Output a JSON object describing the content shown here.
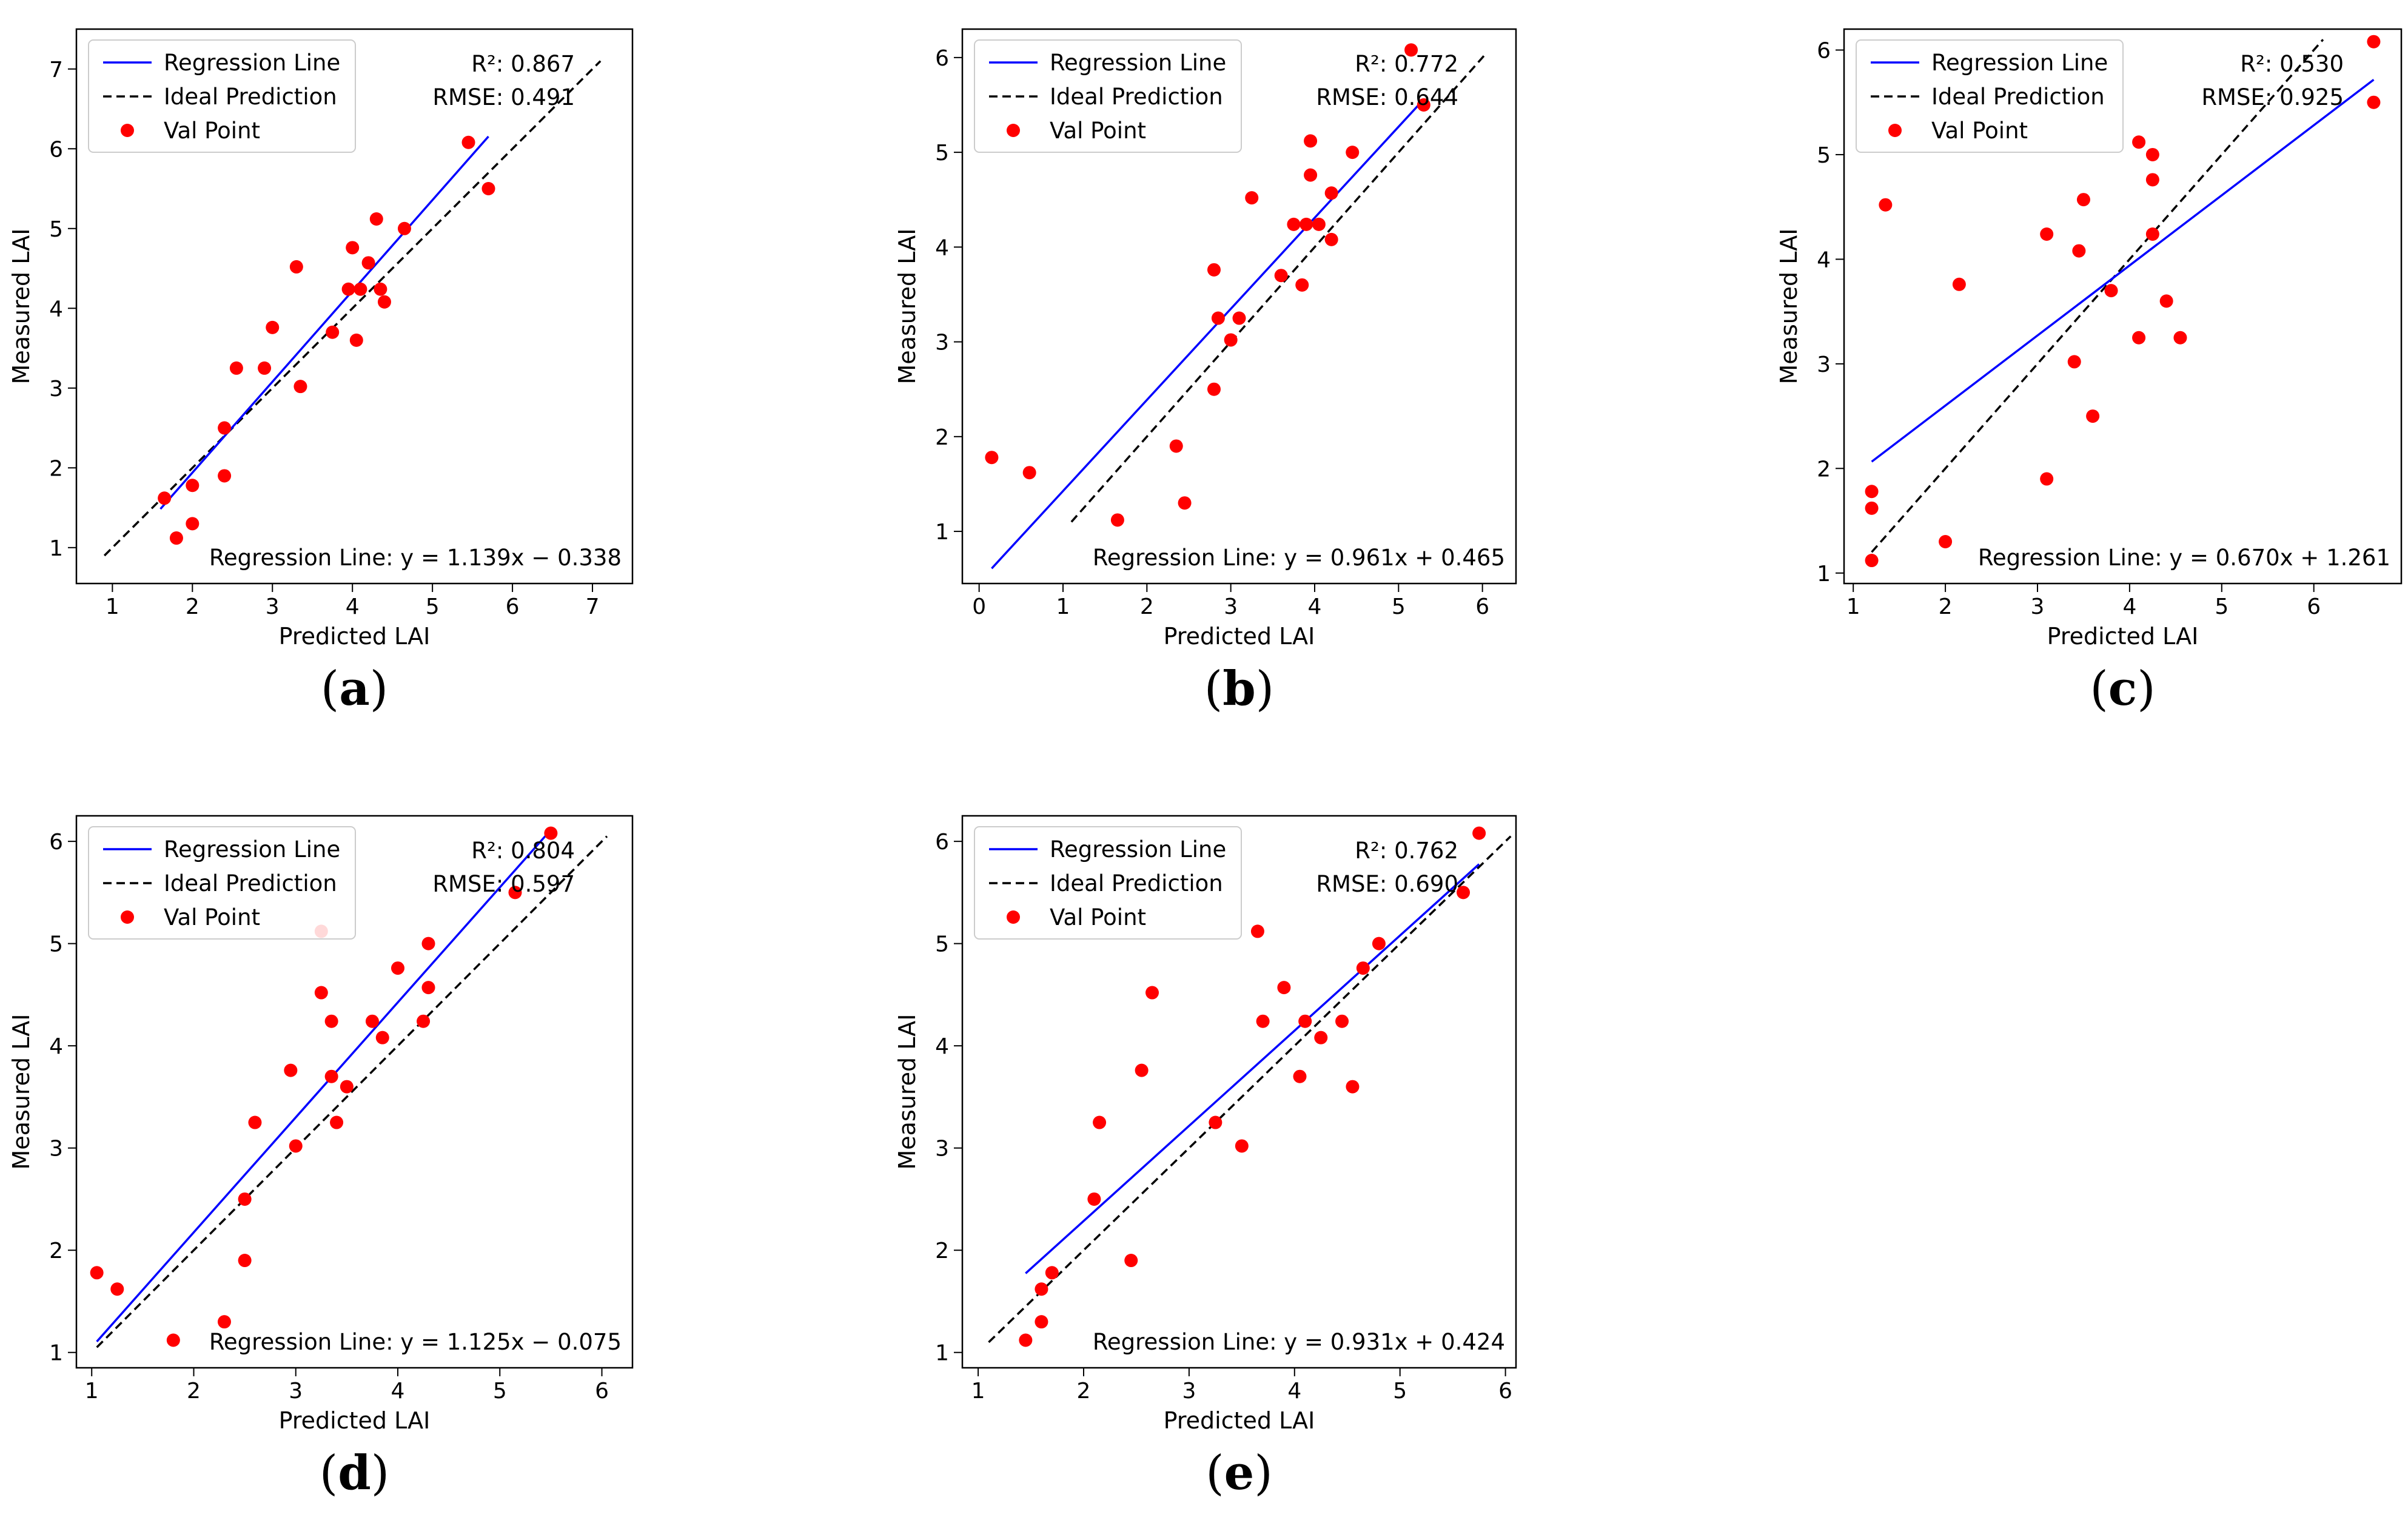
{
  "colors": {
    "regression": "#0000ff",
    "ideal": "#000000",
    "points": "#ff0000",
    "axis": "#000000"
  },
  "chart_data": [
    {
      "panel": "a",
      "caption_open": "(",
      "caption_letter": "a",
      "caption_close": ")",
      "type": "scatter",
      "xlabel": "Predicted LAI",
      "ylabel": "Measured LAI",
      "xlim": [
        0.55,
        7.5
      ],
      "ylim": [
        0.55,
        7.5
      ],
      "xticks": [
        1,
        2,
        3,
        4,
        5,
        6,
        7
      ],
      "yticks": [
        1,
        2,
        3,
        4,
        5,
        6,
        7
      ],
      "legend": [
        "Regression Line",
        "Ideal Prediction",
        "Val Point"
      ],
      "stats": [
        "R²: 0.867",
        "RMSE: 0.491"
      ],
      "equation": "Regression Line: y = 1.139x − 0.338",
      "regression": {
        "slope": 1.139,
        "intercept": -0.338,
        "x_range": [
          1.6,
          5.7
        ]
      },
      "ideal_range": [
        0.9,
        7.1
      ],
      "points": [
        [
          1.65,
          1.62
        ],
        [
          1.8,
          1.12
        ],
        [
          2.0,
          1.78
        ],
        [
          2.0,
          1.3
        ],
        [
          2.4,
          2.5
        ],
        [
          2.4,
          1.9
        ],
        [
          2.55,
          3.25
        ],
        [
          2.9,
          3.25
        ],
        [
          3.0,
          3.76
        ],
        [
          3.3,
          4.52
        ],
        [
          3.35,
          3.02
        ],
        [
          3.75,
          3.7
        ],
        [
          3.95,
          4.24
        ],
        [
          4.0,
          4.76
        ],
        [
          4.05,
          3.6
        ],
        [
          4.1,
          4.24
        ],
        [
          4.2,
          4.57
        ],
        [
          4.3,
          5.12
        ],
        [
          4.35,
          4.24
        ],
        [
          4.4,
          4.08
        ],
        [
          4.65,
          5.0
        ],
        [
          5.45,
          6.08
        ],
        [
          5.7,
          5.5
        ]
      ]
    },
    {
      "panel": "b",
      "caption_open": "(",
      "caption_letter": "b",
      "caption_close": ")",
      "type": "scatter",
      "xlabel": "Predicted LAI",
      "ylabel": "Measured LAI",
      "xlim": [
        -0.2,
        6.4
      ],
      "ylim": [
        0.45,
        6.3
      ],
      "xticks": [
        0,
        1,
        2,
        3,
        4,
        5,
        6
      ],
      "yticks": [
        1,
        2,
        3,
        4,
        5,
        6
      ],
      "legend": [
        "Regression Line",
        "Ideal Prediction",
        "Val Point"
      ],
      "stats": [
        "R²: 0.772",
        "RMSE: 0.644"
      ],
      "equation": "Regression Line: y = 0.961x + 0.465",
      "regression": {
        "slope": 0.961,
        "intercept": 0.465,
        "x_range": [
          0.15,
          5.3
        ]
      },
      "ideal_range": [
        1.1,
        6.05
      ],
      "points": [
        [
          0.15,
          1.78
        ],
        [
          0.6,
          1.62
        ],
        [
          1.65,
          1.12
        ],
        [
          2.35,
          1.9
        ],
        [
          2.45,
          1.3
        ],
        [
          2.8,
          3.76
        ],
        [
          2.8,
          2.5
        ],
        [
          2.85,
          3.25
        ],
        [
          3.0,
          3.02
        ],
        [
          3.1,
          3.25
        ],
        [
          3.25,
          4.52
        ],
        [
          3.6,
          3.7
        ],
        [
          3.75,
          4.24
        ],
        [
          3.85,
          3.6
        ],
        [
          3.9,
          4.24
        ],
        [
          3.95,
          4.76
        ],
        [
          3.95,
          5.12
        ],
        [
          4.05,
          4.24
        ],
        [
          4.2,
          4.08
        ],
        [
          4.2,
          4.57
        ],
        [
          4.45,
          5.0
        ],
        [
          5.15,
          6.08
        ],
        [
          5.3,
          5.5
        ]
      ]
    },
    {
      "panel": "c",
      "caption_open": "(",
      "caption_letter": "c",
      "caption_close": ")",
      "type": "scatter",
      "xlabel": "Predicted LAI",
      "ylabel": "Measured LAI",
      "xlim": [
        0.9,
        6.95
      ],
      "ylim": [
        0.9,
        6.2
      ],
      "xticks": [
        1,
        2,
        3,
        4,
        5,
        6
      ],
      "yticks": [
        1,
        2,
        3,
        4,
        5,
        6
      ],
      "legend": [
        "Regression Line",
        "Ideal Prediction",
        "Val Point"
      ],
      "stats": [
        "R²: 0.530",
        "RMSE: 0.925"
      ],
      "equation": "Regression Line: y = 0.670x + 1.261",
      "regression": {
        "slope": 0.67,
        "intercept": 1.261,
        "x_range": [
          1.2,
          6.65
        ]
      },
      "ideal_range": [
        1.2,
        6.1
      ],
      "points": [
        [
          1.2,
          1.12
        ],
        [
          1.2,
          1.78
        ],
        [
          1.2,
          1.62
        ],
        [
          1.35,
          4.52
        ],
        [
          2.0,
          1.3
        ],
        [
          2.15,
          3.76
        ],
        [
          3.1,
          1.9
        ],
        [
          3.1,
          4.24
        ],
        [
          3.4,
          3.02
        ],
        [
          3.45,
          4.08
        ],
        [
          3.5,
          4.57
        ],
        [
          3.6,
          2.5
        ],
        [
          3.8,
          3.7
        ],
        [
          4.1,
          3.25
        ],
        [
          4.1,
          5.12
        ],
        [
          4.25,
          5.0
        ],
        [
          4.25,
          4.76
        ],
        [
          4.25,
          4.24
        ],
        [
          4.4,
          3.6
        ],
        [
          4.55,
          3.25
        ],
        [
          6.65,
          6.08
        ],
        [
          6.65,
          5.5
        ]
      ]
    },
    {
      "panel": "d",
      "caption_open": "(",
      "caption_letter": "d",
      "caption_close": ")",
      "type": "scatter",
      "xlabel": "Predicted LAI",
      "ylabel": "Measured LAI",
      "xlim": [
        0.85,
        6.3
      ],
      "ylim": [
        0.85,
        6.25
      ],
      "xticks": [
        1,
        2,
        3,
        4,
        5,
        6
      ],
      "yticks": [
        1,
        2,
        3,
        4,
        5,
        6
      ],
      "legend": [
        "Regression Line",
        "Ideal Prediction",
        "Val Point"
      ],
      "stats": [
        "R²: 0.804",
        "RMSE: 0.597"
      ],
      "equation": "Regression Line: y = 1.125x − 0.075",
      "regression": {
        "slope": 1.125,
        "intercept": -0.075,
        "x_range": [
          1.05,
          5.45
        ]
      },
      "ideal_range": [
        1.05,
        6.05
      ],
      "points": [
        [
          1.05,
          1.78
        ],
        [
          1.25,
          1.62
        ],
        [
          1.8,
          1.12
        ],
        [
          2.3,
          1.3
        ],
        [
          2.5,
          2.5
        ],
        [
          2.5,
          1.9
        ],
        [
          2.6,
          3.25
        ],
        [
          2.95,
          3.76
        ],
        [
          3.0,
          3.02
        ],
        [
          3.25,
          5.12
        ],
        [
          3.25,
          4.52
        ],
        [
          3.35,
          3.7
        ],
        [
          3.35,
          4.24
        ],
        [
          3.4,
          3.25
        ],
        [
          3.5,
          3.6
        ],
        [
          3.75,
          4.24
        ],
        [
          3.85,
          4.08
        ],
        [
          4.0,
          4.76
        ],
        [
          4.25,
          4.24
        ],
        [
          4.3,
          4.57
        ],
        [
          4.3,
          5.0
        ],
        [
          5.15,
          5.5
        ],
        [
          5.5,
          6.08
        ]
      ]
    },
    {
      "panel": "e",
      "caption_open": "(",
      "caption_letter": "e",
      "caption_close": ")",
      "type": "scatter",
      "xlabel": "Predicted LAI",
      "ylabel": "Measured LAI",
      "xlim": [
        0.85,
        6.1
      ],
      "ylim": [
        0.85,
        6.25
      ],
      "xticks": [
        1,
        2,
        3,
        4,
        5,
        6
      ],
      "yticks": [
        1,
        2,
        3,
        4,
        5,
        6
      ],
      "legend": [
        "Regression Line",
        "Ideal Prediction",
        "Val Point"
      ],
      "stats": [
        "R²: 0.762",
        "RMSE: 0.690"
      ],
      "equation": "Regression Line: y = 0.931x + 0.424",
      "regression": {
        "slope": 0.931,
        "intercept": 0.424,
        "x_range": [
          1.45,
          5.75
        ]
      },
      "ideal_range": [
        1.1,
        6.05
      ],
      "points": [
        [
          1.45,
          1.12
        ],
        [
          1.6,
          1.3
        ],
        [
          1.6,
          1.62
        ],
        [
          1.7,
          1.78
        ],
        [
          2.1,
          2.5
        ],
        [
          2.15,
          3.25
        ],
        [
          2.45,
          1.9
        ],
        [
          2.55,
          3.76
        ],
        [
          2.65,
          4.52
        ],
        [
          3.25,
          3.25
        ],
        [
          3.5,
          3.02
        ],
        [
          3.65,
          5.12
        ],
        [
          3.7,
          4.24
        ],
        [
          3.9,
          4.57
        ],
        [
          4.05,
          3.7
        ],
        [
          4.1,
          4.24
        ],
        [
          4.25,
          4.08
        ],
        [
          4.45,
          4.24
        ],
        [
          4.55,
          3.6
        ],
        [
          4.65,
          4.76
        ],
        [
          4.8,
          5.0
        ],
        [
          5.6,
          5.5
        ],
        [
          5.75,
          6.08
        ]
      ]
    }
  ]
}
